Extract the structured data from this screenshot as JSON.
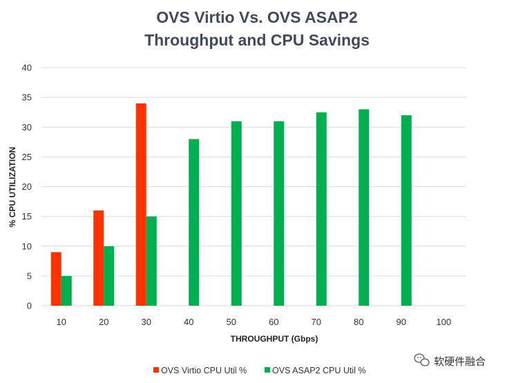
{
  "chart_data": {
    "type": "bar",
    "title": "OVS Virtio Vs. OVS ASAP2",
    "subtitle": "Throughput and CPU Savings",
    "xlabel": "THROUGHPUT (Gbps)",
    "ylabel": "% CPU UTILIZATION",
    "ylim": [
      0,
      40
    ],
    "yticks": [
      "0",
      "5",
      "10",
      "15",
      "20",
      "25",
      "30",
      "35",
      "40"
    ],
    "grid": true,
    "legend_position": "bottom",
    "categories": [
      "10",
      "20",
      "30",
      "40",
      "50",
      "60",
      "70",
      "80",
      "90",
      "100"
    ],
    "series": [
      {
        "name": "OVS Virtio CPU Util  %",
        "color": "#ff3300",
        "values": [
          9,
          16,
          34,
          null,
          null,
          null,
          null,
          null,
          null,
          null
        ]
      },
      {
        "name": "OVS ASAP2 CPU Util  %",
        "color": "#00b050",
        "values": [
          5,
          10,
          15,
          28,
          31,
          31,
          32.5,
          33,
          32,
          null
        ]
      }
    ]
  },
  "watermark": {
    "text": "软硬件融合",
    "icon": "wechat-icon"
  }
}
